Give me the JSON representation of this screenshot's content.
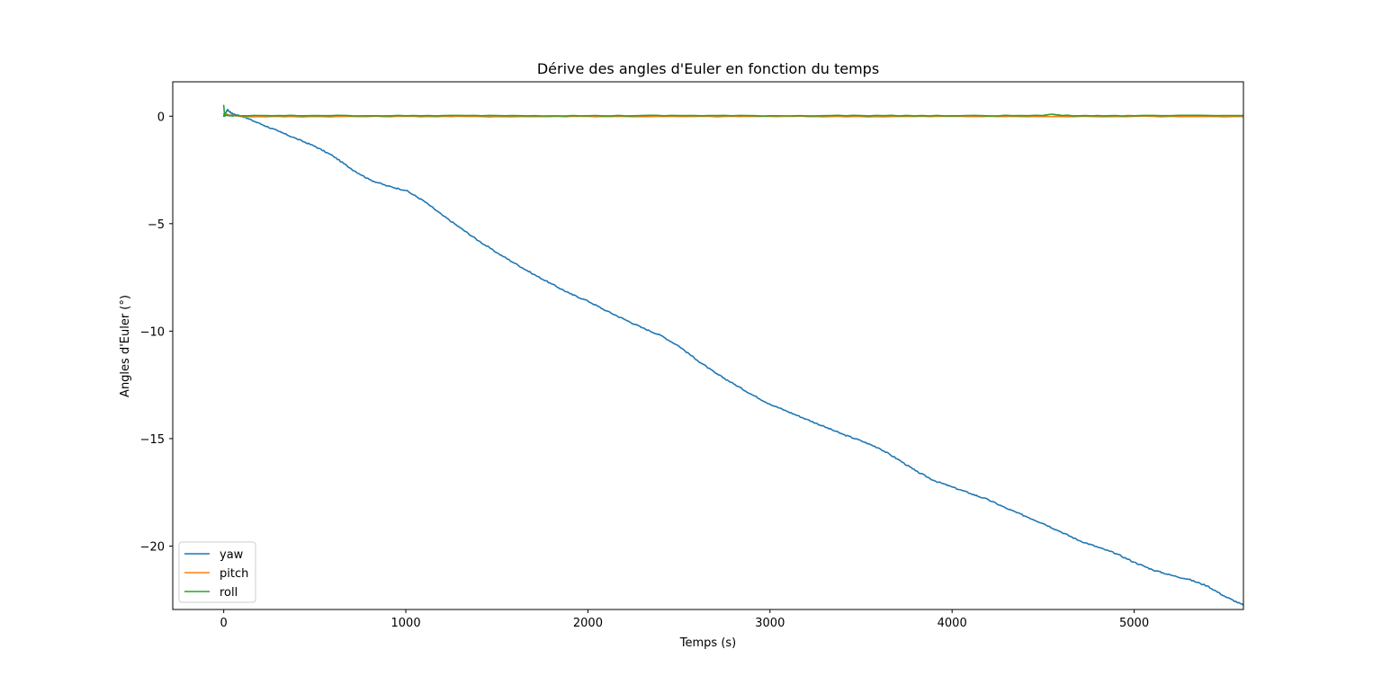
{
  "chart_data": {
    "type": "line",
    "title": "Dérive des angles d'Euler en fonction du temps",
    "xlabel": "Temps (s)",
    "ylabel": "Angles d'Euler (°)",
    "xlim": [
      -280,
      5600
    ],
    "ylim": [
      -22.95,
      1.6
    ],
    "xticks": [
      0,
      1000,
      2000,
      3000,
      4000,
      5000
    ],
    "xtick_labels": [
      "0",
      "1000",
      "2000",
      "3000",
      "4000",
      "5000"
    ],
    "yticks": [
      0,
      -5,
      -10,
      -15,
      -20
    ],
    "ytick_labels": [
      "0",
      "−5",
      "−10",
      "−15",
      "−20"
    ],
    "grid": false,
    "legend_position": "lower-left",
    "series": [
      {
        "name": "yaw",
        "color": "#1f77b4",
        "x": [
          0,
          20,
          50,
          100,
          200,
          300,
          400,
          500,
          600,
          700,
          800,
          900,
          1000,
          1100,
          1200,
          1300,
          1400,
          1500,
          1600,
          1700,
          1800,
          1900,
          2000,
          2100,
          2200,
          2300,
          2400,
          2500,
          2600,
          2700,
          2800,
          2900,
          3000,
          3100,
          3200,
          3300,
          3400,
          3500,
          3600,
          3700,
          3800,
          3900,
          4000,
          4100,
          4200,
          4300,
          4400,
          4500,
          4600,
          4700,
          4800,
          4900,
          5000,
          5100,
          5200,
          5300,
          5400,
          5500,
          5600
        ],
        "values": [
          0.0,
          0.3,
          0.1,
          0.0,
          -0.35,
          -0.7,
          -1.05,
          -1.4,
          -1.85,
          -2.45,
          -2.95,
          -3.25,
          -3.45,
          -3.95,
          -4.6,
          -5.2,
          -5.8,
          -6.35,
          -6.85,
          -7.35,
          -7.8,
          -8.25,
          -8.6,
          -9.05,
          -9.45,
          -9.85,
          -10.2,
          -10.7,
          -11.35,
          -11.95,
          -12.45,
          -12.95,
          -13.4,
          -13.75,
          -14.1,
          -14.45,
          -14.8,
          -15.1,
          -15.45,
          -15.95,
          -16.5,
          -16.95,
          -17.25,
          -17.55,
          -17.85,
          -18.25,
          -18.6,
          -18.95,
          -19.35,
          -19.75,
          -20.05,
          -20.35,
          -20.75,
          -21.1,
          -21.35,
          -21.55,
          -21.85,
          -22.35,
          -22.75
        ]
      },
      {
        "name": "pitch",
        "color": "#ff7f0e",
        "x": [
          0,
          100,
          500,
          1000,
          1500,
          2000,
          2500,
          3000,
          3500,
          4000,
          4500,
          5000,
          5600
        ],
        "values": [
          0.1,
          -0.02,
          -0.02,
          -0.01,
          -0.02,
          -0.01,
          -0.02,
          -0.01,
          -0.02,
          -0.01,
          -0.02,
          -0.01,
          -0.02
        ]
      },
      {
        "name": "roll",
        "color": "#2ca02c",
        "x": [
          0,
          5,
          10,
          40,
          100,
          500,
          1000,
          1500,
          2000,
          2500,
          3000,
          3500,
          4000,
          4500,
          4550,
          4600,
          5000,
          5600
        ],
        "values": [
          0.5,
          0.0,
          0.05,
          0.02,
          0.02,
          0.03,
          0.02,
          0.03,
          0.02,
          0.03,
          0.02,
          0.03,
          0.02,
          0.03,
          0.1,
          0.03,
          0.02,
          0.03
        ]
      }
    ]
  }
}
